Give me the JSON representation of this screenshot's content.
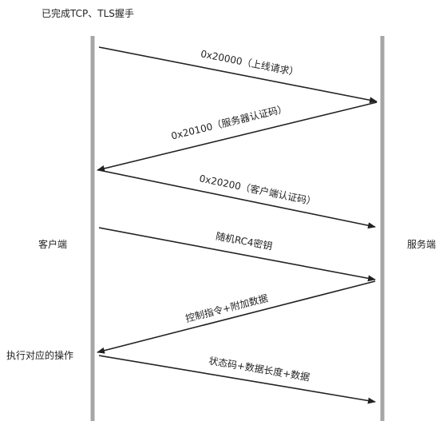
{
  "header": {
    "note": "已完成TCP、TLS握手"
  },
  "participants": {
    "client": "客户端",
    "server": "服务端"
  },
  "client_action": "执行对应的操作",
  "messages": [
    {
      "text": "0x20000（上线请求）",
      "direction": "client-to-server"
    },
    {
      "text": "0x20100（服务器认证码）",
      "direction": "server-to-client"
    },
    {
      "text": "0x20200（客户端认证码）",
      "direction": "client-to-server"
    },
    {
      "text": "随机RC4密钥",
      "direction": "client-to-server"
    },
    {
      "text": "控制指令+附加数据",
      "direction": "server-to-client"
    },
    {
      "text": "状态码+数据长度+数据",
      "direction": "client-to-server"
    }
  ],
  "colors": {
    "lifeline": "#a6a6a6",
    "arrow": "#222222"
  }
}
